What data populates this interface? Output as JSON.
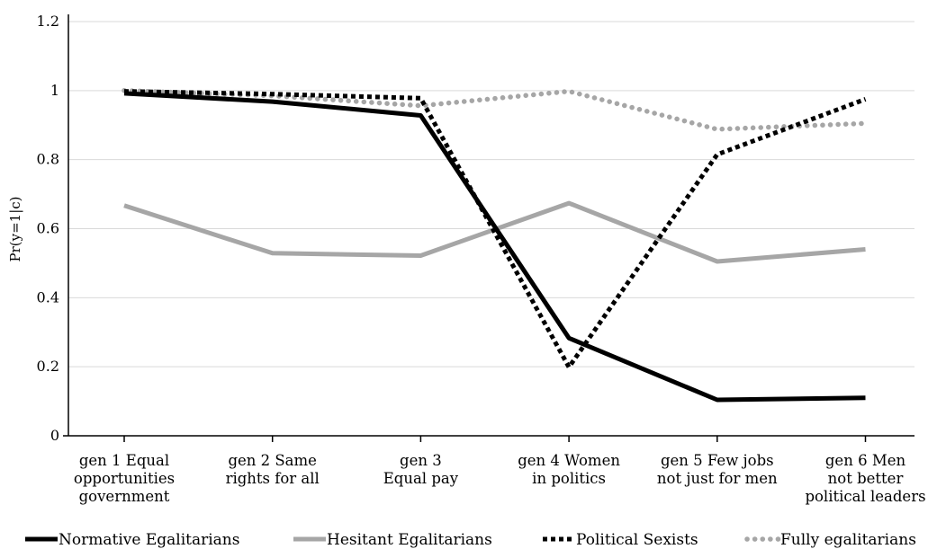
{
  "chart_data": {
    "type": "line",
    "title": "",
    "xlabel": "",
    "ylabel": "Pr(y=1|c)",
    "ylim": [
      0,
      1.2
    ],
    "yticks": [
      "0",
      "0.2",
      "0.4",
      "0.6",
      "0.8",
      "1",
      "1.2"
    ],
    "grid": true,
    "legend_position": "bottom",
    "categories": [
      [
        "gen 1 Equal",
        "opportunities",
        "government"
      ],
      [
        "gen 2 Same",
        "rights for all"
      ],
      [
        "gen 3",
        "Equal pay"
      ],
      [
        "gen 4 Women",
        "in politics"
      ],
      [
        "gen 5 Few jobs",
        "not just for men"
      ],
      [
        "gen 6 Men",
        "not better",
        "political leaders"
      ]
    ],
    "series": [
      {
        "name": "Normative Egalitarians",
        "color": "#000000",
        "style": "solid",
        "values": [
          0.992,
          0.968,
          0.928,
          0.283,
          0.104,
          0.11
        ]
      },
      {
        "name": "Hesitant Egalitarians",
        "color": "#a6a6a6",
        "style": "solid",
        "values": [
          0.667,
          0.529,
          0.522,
          0.674,
          0.505,
          0.54
        ]
      },
      {
        "name": "Political Sexists",
        "color": "#000000",
        "style": "dotted",
        "values": [
          0.998,
          0.99,
          0.978,
          0.199,
          0.815,
          0.975
        ]
      },
      {
        "name": "Fully egalitarians",
        "color": "#a6a6a6",
        "style": "dotted",
        "values": [
          1.0,
          0.985,
          0.956,
          0.998,
          0.888,
          0.905
        ]
      }
    ]
  }
}
